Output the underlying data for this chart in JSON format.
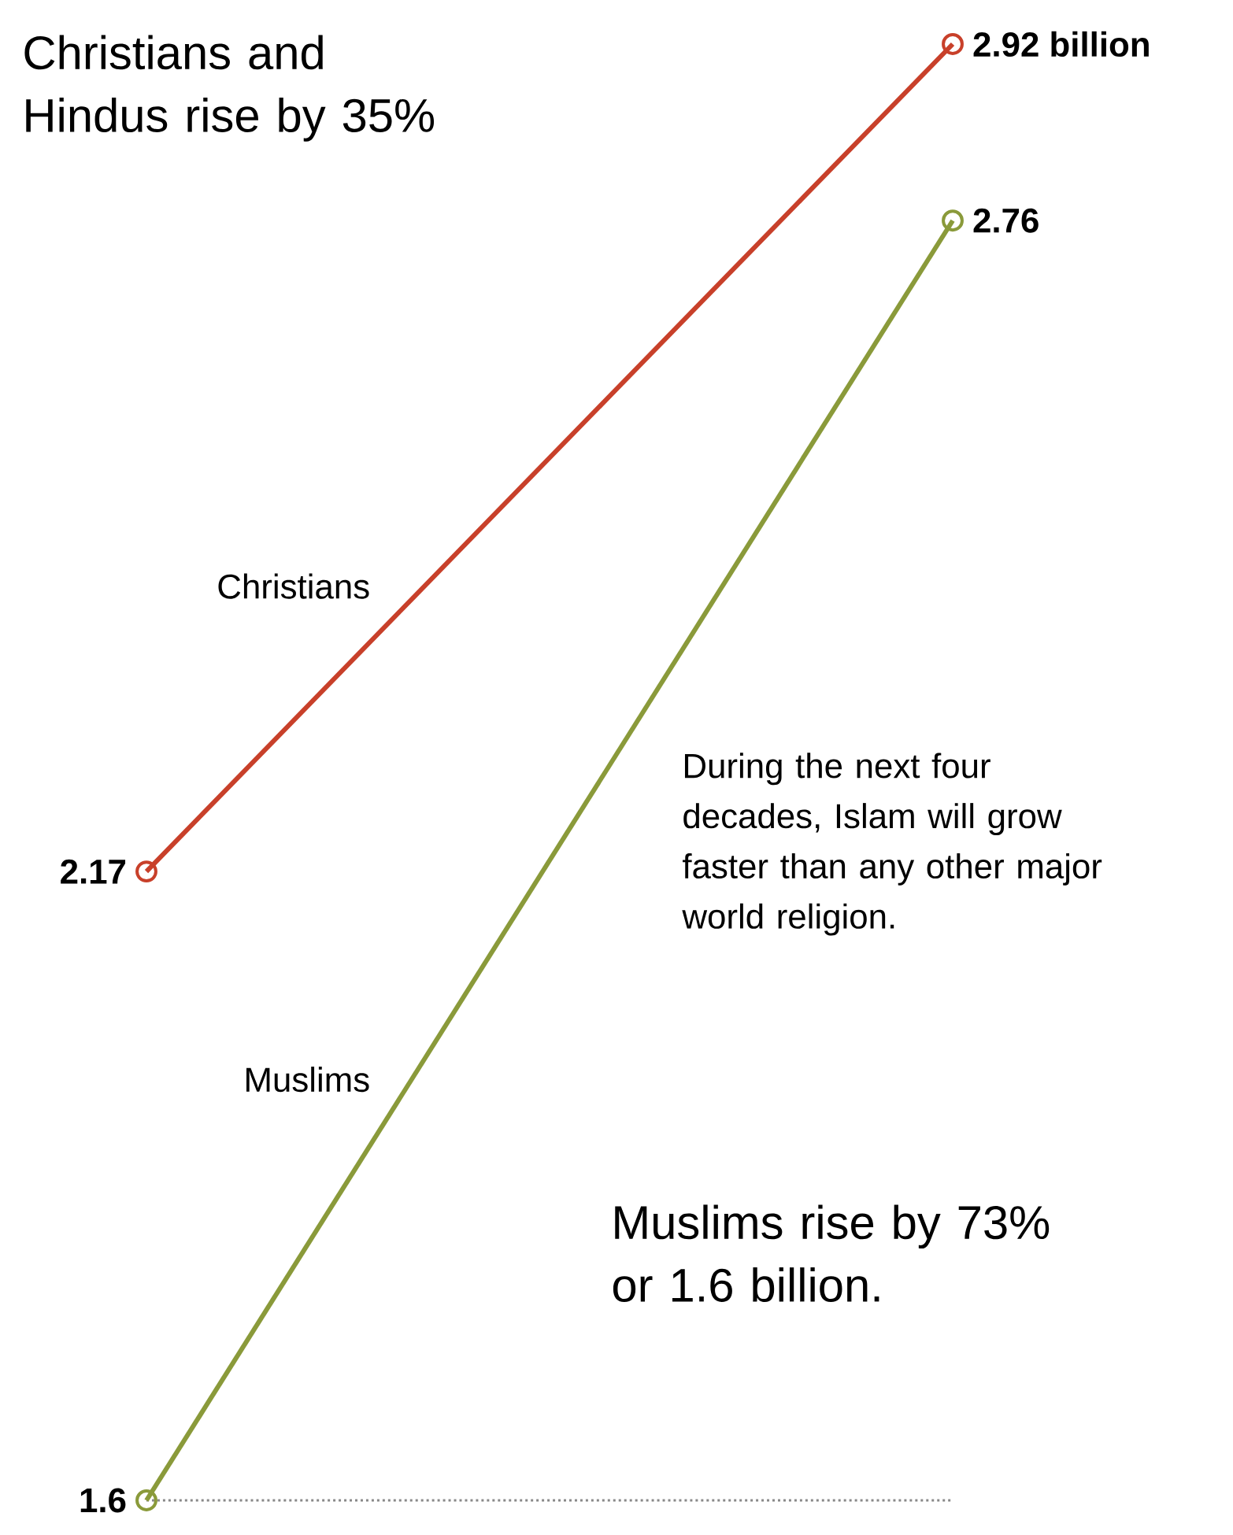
{
  "chart_data": {
    "type": "line",
    "categories": [
      null,
      null
    ],
    "series": [
      {
        "name": "Christians",
        "color": "#c8402a",
        "values": [
          2.17,
          2.92
        ],
        "value_labels": [
          "2.17",
          "2.92 billion"
        ]
      },
      {
        "name": "Muslims",
        "color": "#8a9a3a",
        "values": [
          1.6,
          2.76
        ],
        "value_labels": [
          "1.6",
          "2.76"
        ]
      }
    ],
    "tick_labels": false,
    "marker": "circle",
    "line_style": "solid",
    "ref_lines": [
      {
        "axis": "y",
        "value": 1.6,
        "color": "#888888",
        "line_style": "dotted"
      }
    ],
    "annotations": [
      "Christians and Hindus rise by 35%",
      "During the next four decades, Islam will grow faster than any other major world religion.",
      "Muslims rise by 73% or 1.6 billion."
    ]
  }
}
